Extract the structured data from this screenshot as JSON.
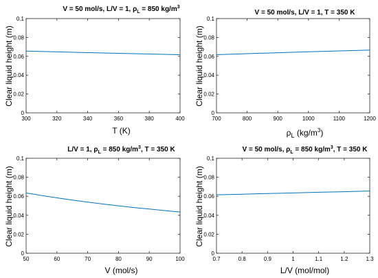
{
  "colors": {
    "line": "#0072BD",
    "axis": "#262626",
    "background": "#ffffff"
  },
  "chart_data": [
    {
      "type": "line",
      "title": "V = 50 mol/s, L/V = 1, ρL = 850 kg/m3",
      "title_parts": {
        "a": "V = 50 mol/s, L/V = 1, ",
        "rho": "ρ",
        "sub": "L",
        "b": " = 850 kg/m",
        "sup": "3"
      },
      "xlabel": "T (K)",
      "ylabel": "Clear liquid height (m)",
      "xlim": [
        300,
        400
      ],
      "ylim": [
        0,
        0.1
      ],
      "xticks": [
        "300",
        "320",
        "340",
        "360",
        "380",
        "400"
      ],
      "yticks": [
        "0",
        "0.02",
        "0.04",
        "0.06",
        "0.08",
        "0.1"
      ],
      "grid": false,
      "series": [
        {
          "x": [
            300,
            325,
            350,
            375,
            400
          ],
          "y": [
            0.0655,
            0.0645,
            0.0635,
            0.0626,
            0.0617
          ]
        }
      ]
    },
    {
      "type": "line",
      "title": "V = 50 mol/s, L/V = 1, T = 350 K",
      "xlabel_parts": {
        "rho": "ρ",
        "sub": "L",
        "a": " (kg/m",
        "sup": "3",
        "b": ")"
      },
      "xlabel": "ρL (kg/m3)",
      "ylabel": "Clear liquid height (m)",
      "xlim": [
        700,
        1200
      ],
      "ylim": [
        0,
        0.1
      ],
      "xticks": [
        "700",
        "800",
        "900",
        "1000",
        "1100",
        "1200"
      ],
      "yticks": [
        "0",
        "0.02",
        "0.04",
        "0.06",
        "0.08",
        "0.1"
      ],
      "grid": false,
      "series": [
        {
          "x": [
            700,
            800,
            900,
            1000,
            1100,
            1200
          ],
          "y": [
            0.0617,
            0.0628,
            0.0638,
            0.0648,
            0.0657,
            0.0666
          ]
        }
      ]
    },
    {
      "type": "line",
      "title": "L/V = 1, ρL = 850 kg/m3, T = 350 K",
      "title_parts": {
        "a": "L/V = 1, ",
        "rho": "ρ",
        "sub": "L",
        "b": " = 850 kg/m",
        "sup": "3",
        "c": ", T = 350 K"
      },
      "xlabel": "V (mol/s)",
      "ylabel": "Clear liquid height (m)",
      "xlim": [
        50,
        100
      ],
      "ylim": [
        0,
        0.1
      ],
      "xticks": [
        "50",
        "60",
        "70",
        "80",
        "90",
        "100"
      ],
      "yticks": [
        "0",
        "0.02",
        "0.04",
        "0.06",
        "0.08",
        "0.1"
      ],
      "grid": false,
      "series": [
        {
          "x": [
            50,
            55,
            60,
            65,
            70,
            75,
            80,
            85,
            90,
            95,
            100
          ],
          "y": [
            0.0635,
            0.0608,
            0.0583,
            0.056,
            0.0538,
            0.0518,
            0.0499,
            0.0481,
            0.0465,
            0.0449,
            0.0434
          ]
        }
      ]
    },
    {
      "type": "line",
      "title": "V = 50 mol/s, ρL = 850 kg/m3, T = 350 K",
      "title_parts": {
        "a": "V = 50 mol/s, ",
        "rho": "ρ",
        "sub": "L",
        "b": " = 850 kg/m",
        "sup": "3",
        "c": ", T = 350 K"
      },
      "xlabel": "L/V (mol/mol)",
      "ylabel": "Clear liquid height (m)",
      "xlim": [
        0.7,
        1.3
      ],
      "ylim": [
        0,
        0.1
      ],
      "xticks": [
        "0.7",
        "0.8",
        "0.9",
        "1",
        "1.1",
        "1.2",
        "1.3"
      ],
      "yticks": [
        "0",
        "0.02",
        "0.04",
        "0.06",
        "0.08",
        "0.1"
      ],
      "grid": false,
      "series": [
        {
          "x": [
            0.7,
            0.8,
            0.9,
            1.0,
            1.1,
            1.2,
            1.3
          ],
          "y": [
            0.0615,
            0.0622,
            0.0629,
            0.0635,
            0.0642,
            0.0648,
            0.0655
          ]
        }
      ]
    }
  ]
}
